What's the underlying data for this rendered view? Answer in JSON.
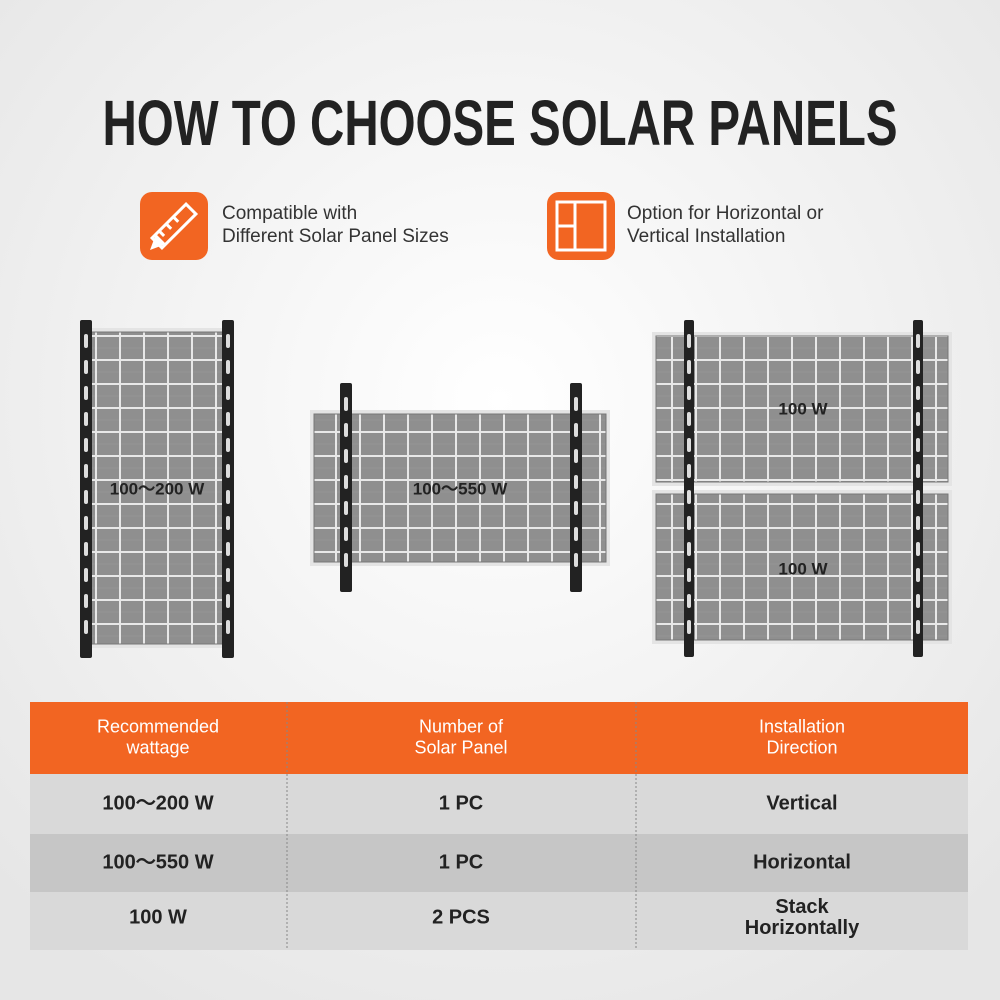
{
  "title": "HOW TO CHOOSE SOLAR PANELS",
  "features": [
    {
      "lines": [
        "Compatible with",
        "Different Solar Panel Sizes"
      ]
    },
    {
      "lines": [
        "Option for Horizontal or",
        "Vertical Installation"
      ]
    }
  ],
  "panels": [
    {
      "label": "100～200 W"
    },
    {
      "label": "100～550 W"
    },
    {
      "labels": [
        "100 W",
        "100 W"
      ]
    }
  ],
  "table": {
    "header": [
      [
        "Recommended",
        "wattage"
      ],
      [
        "Number of",
        "Solar Panel"
      ],
      [
        "Installation",
        "Direction"
      ]
    ],
    "rows": [
      [
        [
          "100～200 W"
        ],
        [
          "1 PC"
        ],
        [
          "Vertical"
        ]
      ],
      [
        [
          "100～550 W"
        ],
        [
          "1 PC"
        ],
        [
          "Horizontal"
        ]
      ],
      [
        [
          "100 W"
        ],
        [
          "2 PCS"
        ],
        [
          "Stack",
          "Horizontally"
        ]
      ]
    ]
  }
}
